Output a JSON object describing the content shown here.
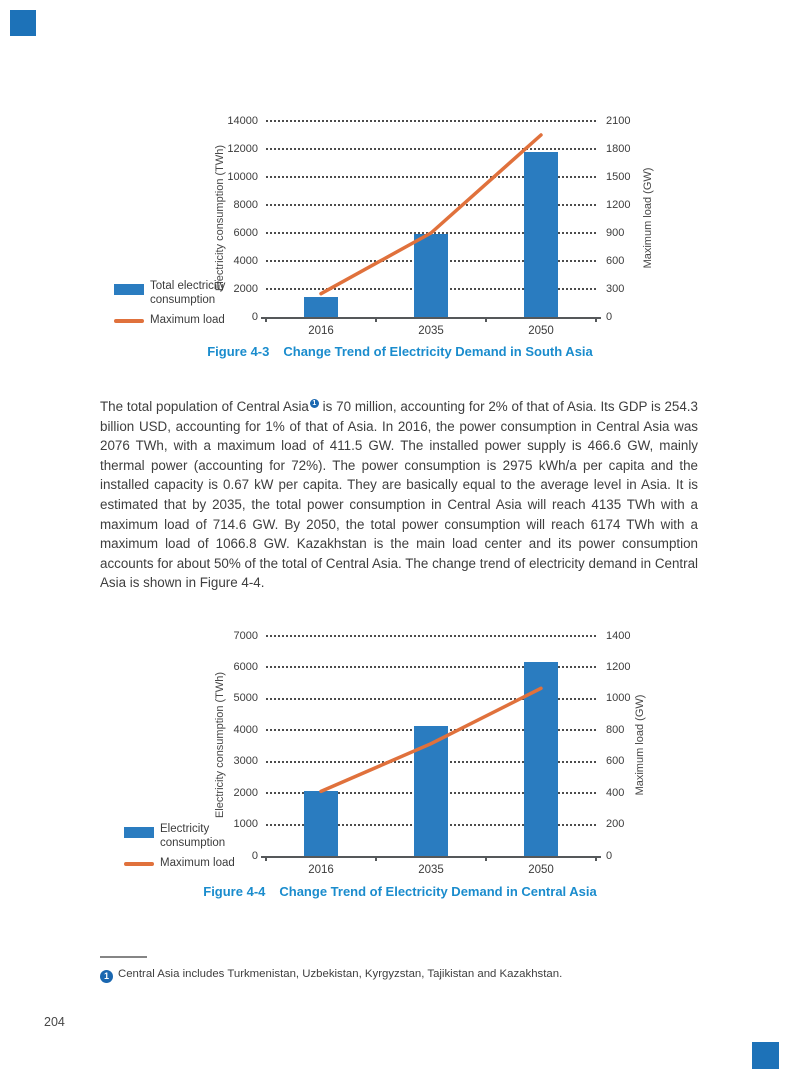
{
  "page": {
    "number": "204"
  },
  "colors": {
    "bar": "#2a7cc0",
    "line": "#e0713c",
    "caption": "#1a8ccd",
    "footnote_marker": "#1a67b0",
    "corner_mark": "#1d72b8"
  },
  "paragraph": {
    "before_marker": "The total population of Central Asia",
    "marker": "1",
    "after_marker": " is 70 million, accounting for 2% of that of Asia. Its GDP is 254.3 billion USD, accounting for 1% of that of Asia. In 2016, the power consumption in Central Asia was 2076 TWh, with a maximum load of 411.5 GW. The installed power supply is 466.6 GW, mainly thermal power (accounting for 72%). The power consumption is 2975 kWh/a per capita and the installed capacity is 0.67 kW per capita. They are basically equal to the average level in Asia. It is estimated that by 2035, the total power consumption in Central Asia will reach 4135 TWh with a maximum load of 714.6 GW. By 2050, the total power consumption will reach 6174 TWh with a maximum load of 1066.8 GW. Kazakhstan is the main load center and its power consumption accounts for about 50% of the total of Central Asia. The change trend of electricity demand in Central Asia is shown in Figure 4-4."
  },
  "footnote": {
    "marker": "1",
    "text": "Central Asia includes Turkmenistan, Uzbekistan, Kyrgyzstan, Tajikistan and Kazakhstan."
  },
  "chart_data": [
    {
      "id": "figure-4-3",
      "type": "bar+line dual-axis",
      "caption_label": "Figure 4-3",
      "caption_text": "Change Trend of Electricity Demand in South Asia",
      "categories": [
        "2016",
        "2035",
        "2050"
      ],
      "series": [
        {
          "name": "Total electricity consumption",
          "type": "bar",
          "axis": "left",
          "values": [
            1400,
            5950,
            11800
          ]
        },
        {
          "name": "Maximum load",
          "type": "line",
          "axis": "right",
          "values": [
            250,
            900,
            1950
          ]
        }
      ],
      "left_axis": {
        "label": "Electricity consumption (TWh)",
        "min": 0,
        "max": 14000,
        "step": 2000
      },
      "right_axis": {
        "label": "Maximum load (GW)",
        "min": 0,
        "max": 2100,
        "step": 300
      },
      "legend": [
        {
          "swatch": "bar",
          "lines": [
            "Total electricity",
            "consumption"
          ]
        },
        {
          "swatch": "line",
          "lines": [
            "Maximum load"
          ]
        }
      ],
      "grid": "horizontal-dotted",
      "legend_position": "left"
    },
    {
      "id": "figure-4-4",
      "type": "bar+line dual-axis",
      "caption_label": "Figure 4-4",
      "caption_text": "Change Trend of Electricity Demand in Central Asia",
      "categories": [
        "2016",
        "2035",
        "2050"
      ],
      "series": [
        {
          "name": "Electricity consumption",
          "type": "bar",
          "axis": "left",
          "values": [
            2076,
            4135,
            6174
          ]
        },
        {
          "name": "Maximum load",
          "type": "line",
          "axis": "right",
          "values": [
            411.5,
            714.6,
            1066.8
          ]
        }
      ],
      "left_axis": {
        "label": "Electricity consumption (TWh)",
        "min": 0,
        "max": 7000,
        "step": 1000
      },
      "right_axis": {
        "label": "Maximum load (GW)",
        "min": 0,
        "max": 1400,
        "step": 200
      },
      "legend": [
        {
          "swatch": "bar",
          "lines": [
            "Electricity",
            "consumption"
          ]
        },
        {
          "swatch": "line",
          "lines": [
            "Maximum load"
          ]
        }
      ],
      "grid": "horizontal-dotted",
      "legend_position": "left"
    }
  ]
}
